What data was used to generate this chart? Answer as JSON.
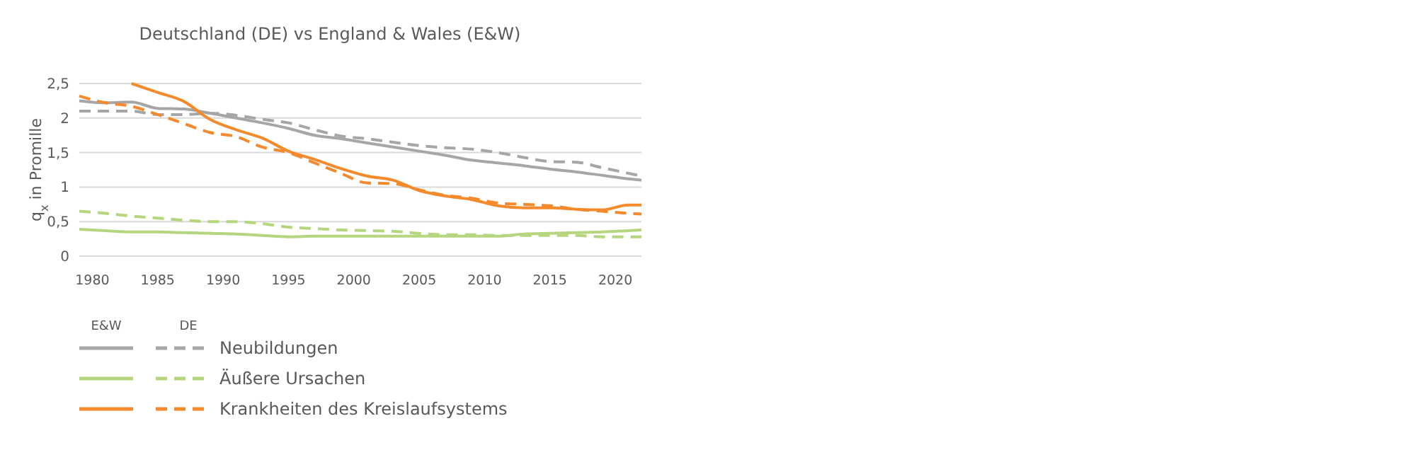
{
  "chart_data": {
    "type": "line",
    "title": "Deutschland (DE) vs England & Wales (E&W)",
    "ylabel": "q$_{x}$ in Promille",
    "x": [
      1979,
      1981,
      1983,
      1985,
      1987,
      1989,
      1991,
      1993,
      1995,
      1997,
      1999,
      2001,
      2003,
      2005,
      2007,
      2009,
      2011,
      2013,
      2015,
      2017,
      2019,
      2021,
      2022
    ],
    "series": [
      {
        "name": "Neubildungen",
        "color": "#a6a6a6",
        "line_style": "solid",
        "values": [
          2.25,
          2.22,
          2.23,
          2.14,
          2.13,
          2.07,
          2.0,
          1.93,
          1.85,
          1.75,
          1.7,
          1.64,
          1.58,
          1.52,
          1.46,
          1.39,
          1.35,
          1.31,
          1.26,
          1.22,
          1.17,
          1.12,
          1.1
        ]
      },
      {
        "color": "#a6a6a6",
        "line_style": "dashed",
        "values": [
          2.1,
          2.1,
          2.1,
          2.05,
          2.05,
          2.07,
          2.04,
          1.98,
          1.93,
          1.83,
          1.74,
          1.7,
          1.65,
          1.6,
          1.57,
          1.55,
          1.5,
          1.43,
          1.37,
          1.36,
          1.28,
          1.2,
          1.16
        ]
      },
      {
        "name": "Äußere Ursachen",
        "color": "#b5d67e",
        "line_style": "solid",
        "values": [
          0.39,
          0.37,
          0.35,
          0.35,
          0.34,
          0.33,
          0.32,
          0.3,
          0.28,
          0.29,
          0.29,
          0.29,
          0.29,
          0.29,
          0.29,
          0.29,
          0.29,
          0.32,
          0.33,
          0.34,
          0.35,
          0.37,
          0.38
        ]
      },
      {
        "color": "#b5d67e",
        "line_style": "dashed",
        "values": [
          0.65,
          0.62,
          0.58,
          0.55,
          0.52,
          0.5,
          0.5,
          0.47,
          0.42,
          0.4,
          0.38,
          0.37,
          0.36,
          0.33,
          0.31,
          0.31,
          0.3,
          0.3,
          0.3,
          0.3,
          0.28,
          0.28,
          0.28
        ]
      },
      {
        "name": "Krankheiten des Kreislaufsystems",
        "color": "#f58a2c",
        "line_style": "solid",
        "values": [
          null,
          null,
          2.5,
          2.37,
          2.24,
          1.98,
          1.83,
          1.71,
          1.52,
          1.4,
          1.27,
          1.16,
          1.1,
          0.95,
          0.87,
          0.82,
          0.73,
          0.7,
          0.7,
          0.68,
          0.67,
          0.74,
          0.74
        ]
      },
      {
        "color": "#f58a2c",
        "line_style": "dashed",
        "values": [
          2.32,
          2.22,
          2.17,
          2.05,
          1.92,
          1.79,
          1.73,
          1.58,
          1.5,
          1.35,
          1.2,
          1.06,
          1.05,
          0.96,
          0.88,
          0.84,
          0.77,
          0.75,
          0.73,
          0.68,
          0.65,
          0.62,
          0.61
        ]
      }
    ],
    "annotations": [
      "E&W",
      "DE"
    ],
    "xlim": [
      1979,
      2022
    ],
    "xticks": [
      1980,
      1985,
      1990,
      1995,
      2000,
      2005,
      2010,
      2015,
      2020
    ],
    "ylim": [
      0,
      2.5
    ],
    "yticks": [
      0,
      {
        "value": 0.5,
        "label": "0,5"
      },
      1,
      {
        "value": 1.5,
        "label": "1,5"
      },
      2,
      {
        "value": 2.5,
        "label": "2,5"
      }
    ],
    "grid": "y",
    "legend": "bottom"
  }
}
